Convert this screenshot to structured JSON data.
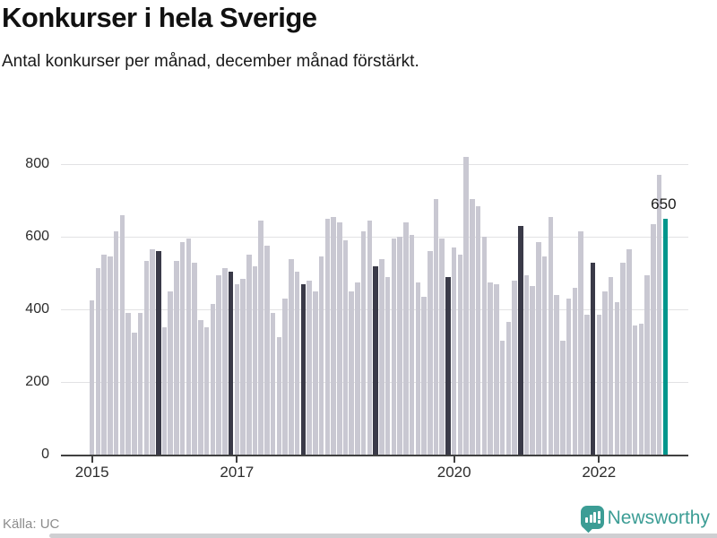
{
  "header": {
    "title": "Konkurser i hela Sverige",
    "subtitle": "Antal konkurser per månad, december månad förstärkt."
  },
  "chart_data": {
    "type": "bar",
    "title": "Konkurser i hela Sverige",
    "xlabel": "",
    "ylabel": "Antal konkurser per månad",
    "x_start": "2015-01",
    "x_end": "2022-12",
    "ylim": [
      0,
      850
    ],
    "grid": true,
    "yticks": [
      0,
      200,
      400,
      600,
      800
    ],
    "xticks": [
      {
        "label": "2015",
        "month_index": 0
      },
      {
        "label": "2017",
        "month_index": 24
      },
      {
        "label": "2020",
        "month_index": 60
      },
      {
        "label": "2022",
        "month_index": 84
      }
    ],
    "series": [
      {
        "name": "Konkurser per månad (jan 2015 - dec 2022)",
        "values": [
          425,
          515,
          550,
          545,
          615,
          660,
          390,
          335,
          390,
          535,
          565,
          560,
          350,
          450,
          535,
          585,
          595,
          530,
          370,
          350,
          415,
          495,
          515,
          505,
          470,
          485,
          550,
          520,
          645,
          575,
          390,
          325,
          430,
          540,
          505,
          470,
          480,
          450,
          545,
          650,
          655,
          640,
          590,
          450,
          475,
          615,
          645,
          520,
          540,
          490,
          595,
          600,
          640,
          605,
          475,
          435,
          560,
          705,
          595,
          490,
          570,
          550,
          820,
          705,
          685,
          600,
          475,
          470,
          315,
          365,
          480,
          630,
          495,
          465,
          585,
          545,
          655,
          440,
          315,
          430,
          460,
          615,
          385,
          530,
          385,
          450,
          490,
          420,
          530,
          565,
          355,
          360,
          495,
          635,
          770,
          650
        ]
      }
    ],
    "annotation": {
      "text": "650",
      "month_index": 95
    },
    "highlight": {
      "december_bars": "dark",
      "last_bar": "teal"
    },
    "colors": {
      "bar": "#c9c8d2",
      "december": "#3a3a48",
      "highlight": "#00968c",
      "gridline": "#e2e2e4",
      "axis": "#404040"
    }
  },
  "footer": {
    "source": "Källa: UC",
    "brand": "Newsworthy"
  }
}
